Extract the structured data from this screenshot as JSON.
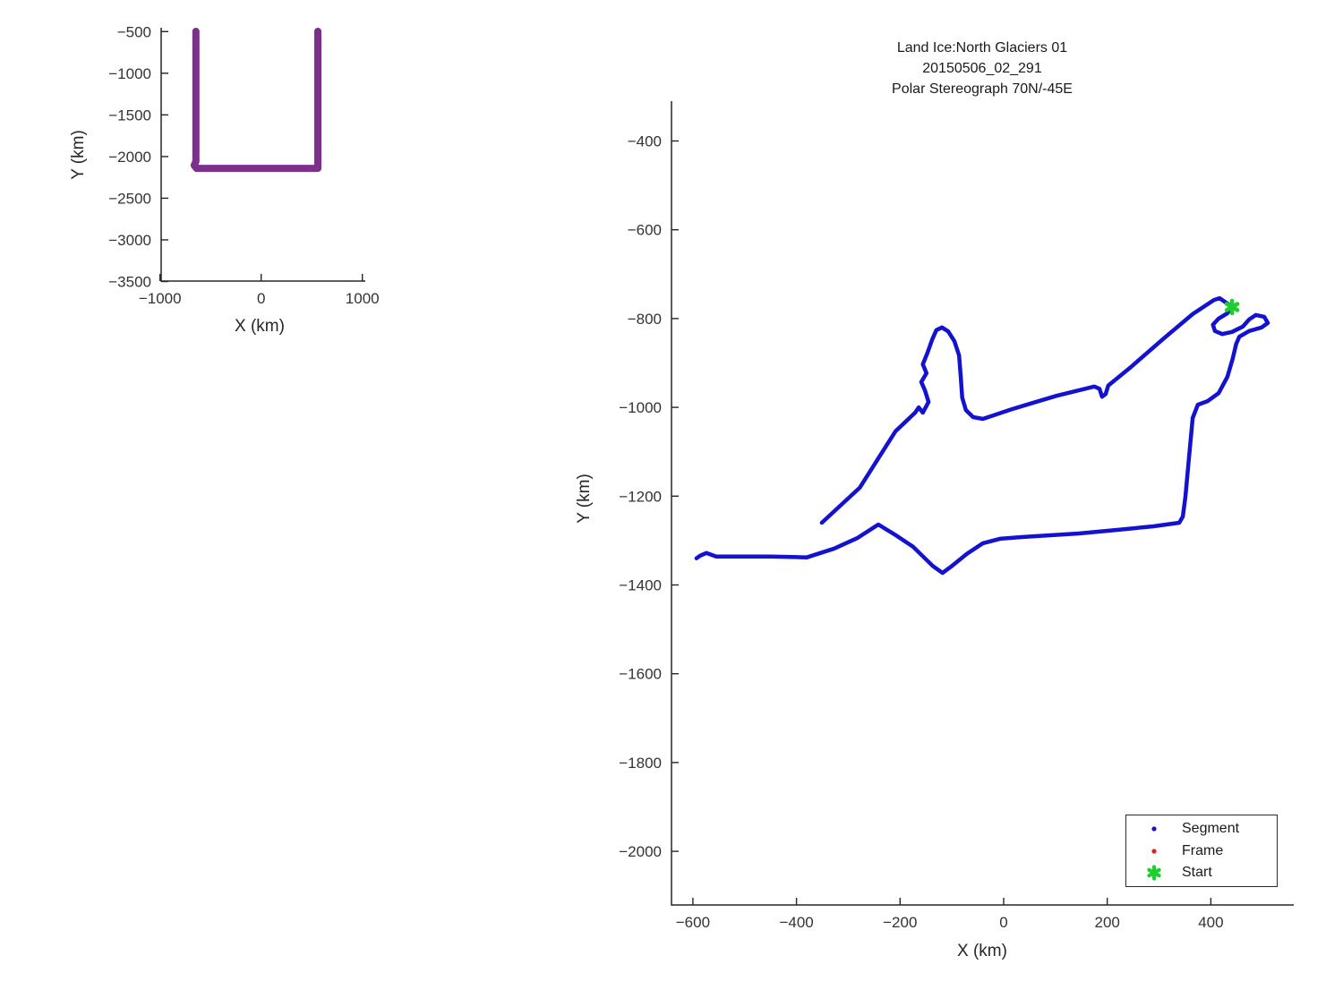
{
  "colors": {
    "track_blue": "#1212d0",
    "coverage_purple": "#7E2F8E",
    "start_green": "#1dcf2d",
    "frame_red": "#dd2222",
    "axis": "#262626"
  },
  "chart_data": [
    {
      "id": "overview",
      "type": "line",
      "xlabel": "X (km)",
      "ylabel": "Y (km)",
      "xlim": [
        -988.5,
        1029.2
      ],
      "ylim": [
        -454,
        -3494.6
      ],
      "grid": false,
      "xticks": {
        "values": [
          -1000,
          0,
          1000
        ],
        "labels": [
          "−1000",
          "0",
          "1000"
        ]
      },
      "yticks": {
        "values": [
          -500,
          -1000,
          -1500,
          -2000,
          -2500,
          -3000,
          -3500
        ],
        "labels": [
          "−500",
          "−1000",
          "−1500",
          "−2000",
          "−2500",
          "−3000",
          "−3500"
        ]
      },
      "series": [
        {
          "name": "coverage-track",
          "color": "#7E2F8E",
          "width": 8,
          "points": [
            [
              -645,
              -497
            ],
            [
              -645,
              -2060
            ],
            [
              -662,
              -2105
            ],
            [
              -638,
              -2142
            ],
            [
              560,
              -2142
            ],
            [
              560,
              -2098
            ],
            [
              560,
              -497
            ]
          ]
        }
      ]
    },
    {
      "id": "main",
      "type": "line",
      "title_lines": [
        "Land Ice:North Glaciers 01",
        "20150506_02_291",
        "Polar Stereograph 70N/-45E"
      ],
      "xlabel": "X (km)",
      "ylabel": "Y (km)",
      "xlim": [
        -641.3,
        560.1
      ],
      "ylim": [
        -310.3,
        -2120.8
      ],
      "grid": false,
      "xticks": {
        "values": [
          -600,
          -400,
          -200,
          0,
          200,
          400
        ],
        "labels": [
          "−600",
          "−400",
          "−200",
          "0",
          "200",
          "400"
        ]
      },
      "yticks": {
        "values": [
          -400,
          -600,
          -800,
          -1000,
          -1200,
          -1400,
          -1600,
          -1800,
          -2000
        ],
        "labels": [
          "−400",
          "−600",
          "−800",
          "−1000",
          "−1200",
          "−1400",
          "−1600",
          "−1800",
          "−2000"
        ]
      },
      "series": [
        {
          "name": "segment-track",
          "color": "#1212d0",
          "width": 4.5,
          "points": [
            [
              -351,
              -1260
            ],
            [
              -278,
              -1181
            ],
            [
              -209,
              -1054
            ],
            [
              -171,
              -1012
            ],
            [
              -164,
              -1000
            ],
            [
              -156,
              -1012
            ],
            [
              -145,
              -988
            ],
            [
              -152,
              -962
            ],
            [
              -159,
              -943
            ],
            [
              -149,
              -923
            ],
            [
              -156,
              -903
            ],
            [
              -147,
              -877
            ],
            [
              -138,
              -847
            ],
            [
              -130,
              -826
            ],
            [
              -119,
              -820
            ],
            [
              -107,
              -829
            ],
            [
              -95,
              -851
            ],
            [
              -86,
              -883
            ],
            [
              -83,
              -929
            ],
            [
              -80,
              -978
            ],
            [
              -73,
              -1006
            ],
            [
              -59,
              -1022
            ],
            [
              -40,
              -1026
            ],
            [
              16,
              -1004
            ],
            [
              102,
              -974
            ],
            [
              175,
              -953
            ],
            [
              185,
              -958
            ],
            [
              190,
              -976
            ],
            [
              197,
              -970
            ],
            [
              202,
              -951
            ],
            [
              244,
              -911
            ],
            [
              309,
              -845
            ],
            [
              365,
              -790
            ],
            [
              406,
              -758
            ],
            [
              417,
              -754
            ],
            [
              429,
              -764
            ],
            [
              441,
              -774
            ],
            [
              432,
              -788
            ],
            [
              415,
              -800
            ],
            [
              404,
              -814
            ],
            [
              408,
              -828
            ],
            [
              422,
              -835
            ],
            [
              441,
              -830
            ],
            [
              462,
              -818
            ],
            [
              474,
              -802
            ],
            [
              487,
              -792
            ],
            [
              503,
              -796
            ],
            [
              510,
              -810
            ],
            [
              498,
              -820
            ],
            [
              474,
              -828
            ],
            [
              455,
              -841
            ],
            [
              449,
              -857
            ],
            [
              442,
              -891
            ],
            [
              432,
              -931
            ],
            [
              415,
              -968
            ],
            [
              394,
              -986
            ],
            [
              375,
              -994
            ],
            [
              365,
              -1024
            ],
            [
              358,
              -1111
            ],
            [
              351,
              -1201
            ],
            [
              346,
              -1246
            ],
            [
              339,
              -1260
            ],
            [
              289,
              -1268
            ],
            [
              219,
              -1276
            ],
            [
              145,
              -1284
            ],
            [
              38,
              -1292
            ],
            [
              -7,
              -1296
            ],
            [
              -40,
              -1306
            ],
            [
              -71,
              -1330
            ],
            [
              -102,
              -1359
            ],
            [
              -118,
              -1373
            ],
            [
              -137,
              -1357
            ],
            [
              -175,
              -1314
            ],
            [
              -211,
              -1286
            ],
            [
              -242,
              -1264
            ],
            [
              -282,
              -1294
            ],
            [
              -327,
              -1318
            ],
            [
              -380,
              -1338
            ],
            [
              -451,
              -1336
            ],
            [
              -555,
              -1336
            ],
            [
              -574,
              -1328
            ],
            [
              -586,
              -1334
            ],
            [
              -593,
              -1340
            ]
          ]
        }
      ],
      "start_marker": {
        "x": 441,
        "y": -774,
        "color": "#1dcf2d"
      },
      "legend": {
        "position": "lower right",
        "entries": [
          {
            "label": "Segment",
            "marker": "dot",
            "color": "#1212d0"
          },
          {
            "label": "Frame",
            "marker": "dot",
            "color": "#dd2222"
          },
          {
            "label": "Start",
            "marker": "star",
            "color": "#1dcf2d"
          }
        ]
      }
    }
  ]
}
